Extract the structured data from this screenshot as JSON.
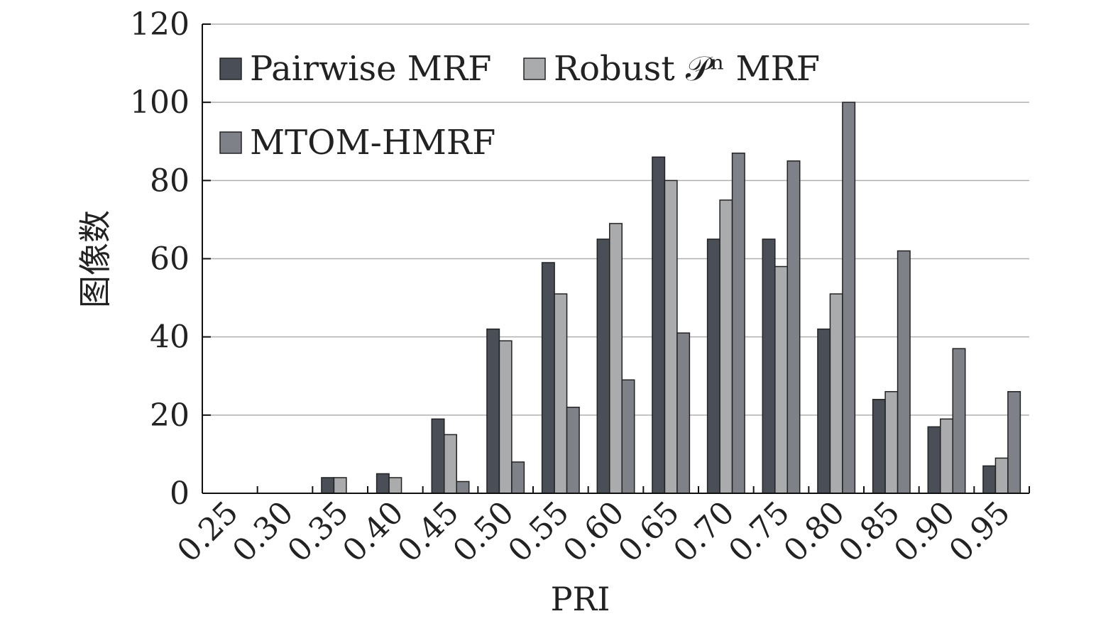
{
  "chart_data": {
    "type": "bar",
    "xlabel": "PRI",
    "ylabel": "图像数",
    "ylim": [
      0,
      120
    ],
    "yticks": [
      0,
      20,
      40,
      60,
      80,
      100,
      120
    ],
    "grid": true,
    "legend_position": "top-left",
    "categories": [
      "0.25",
      "0.30",
      "0.35",
      "0.40",
      "0.45",
      "0.50",
      "0.55",
      "0.60",
      "0.65",
      "0.70",
      "0.75",
      "0.80",
      "0.85",
      "0.90",
      "0.95"
    ],
    "series": [
      {
        "name": "Pairwise MRF",
        "color": "#4a4e57",
        "values": [
          0,
          0,
          4,
          5,
          19,
          42,
          59,
          65,
          86,
          65,
          65,
          42,
          24,
          17,
          7
        ]
      },
      {
        "name": "Robust 𝒫ⁿ MRF",
        "color": "#a9abad",
        "values": [
          0,
          0,
          4,
          4,
          15,
          39,
          51,
          69,
          80,
          75,
          58,
          51,
          26,
          19,
          9
        ]
      },
      {
        "name": "MTOM-HMRF",
        "color": "#7e8187",
        "values": [
          0,
          0,
          0,
          0,
          3,
          8,
          22,
          29,
          41,
          87,
          85,
          100,
          62,
          37,
          26
        ]
      }
    ]
  }
}
